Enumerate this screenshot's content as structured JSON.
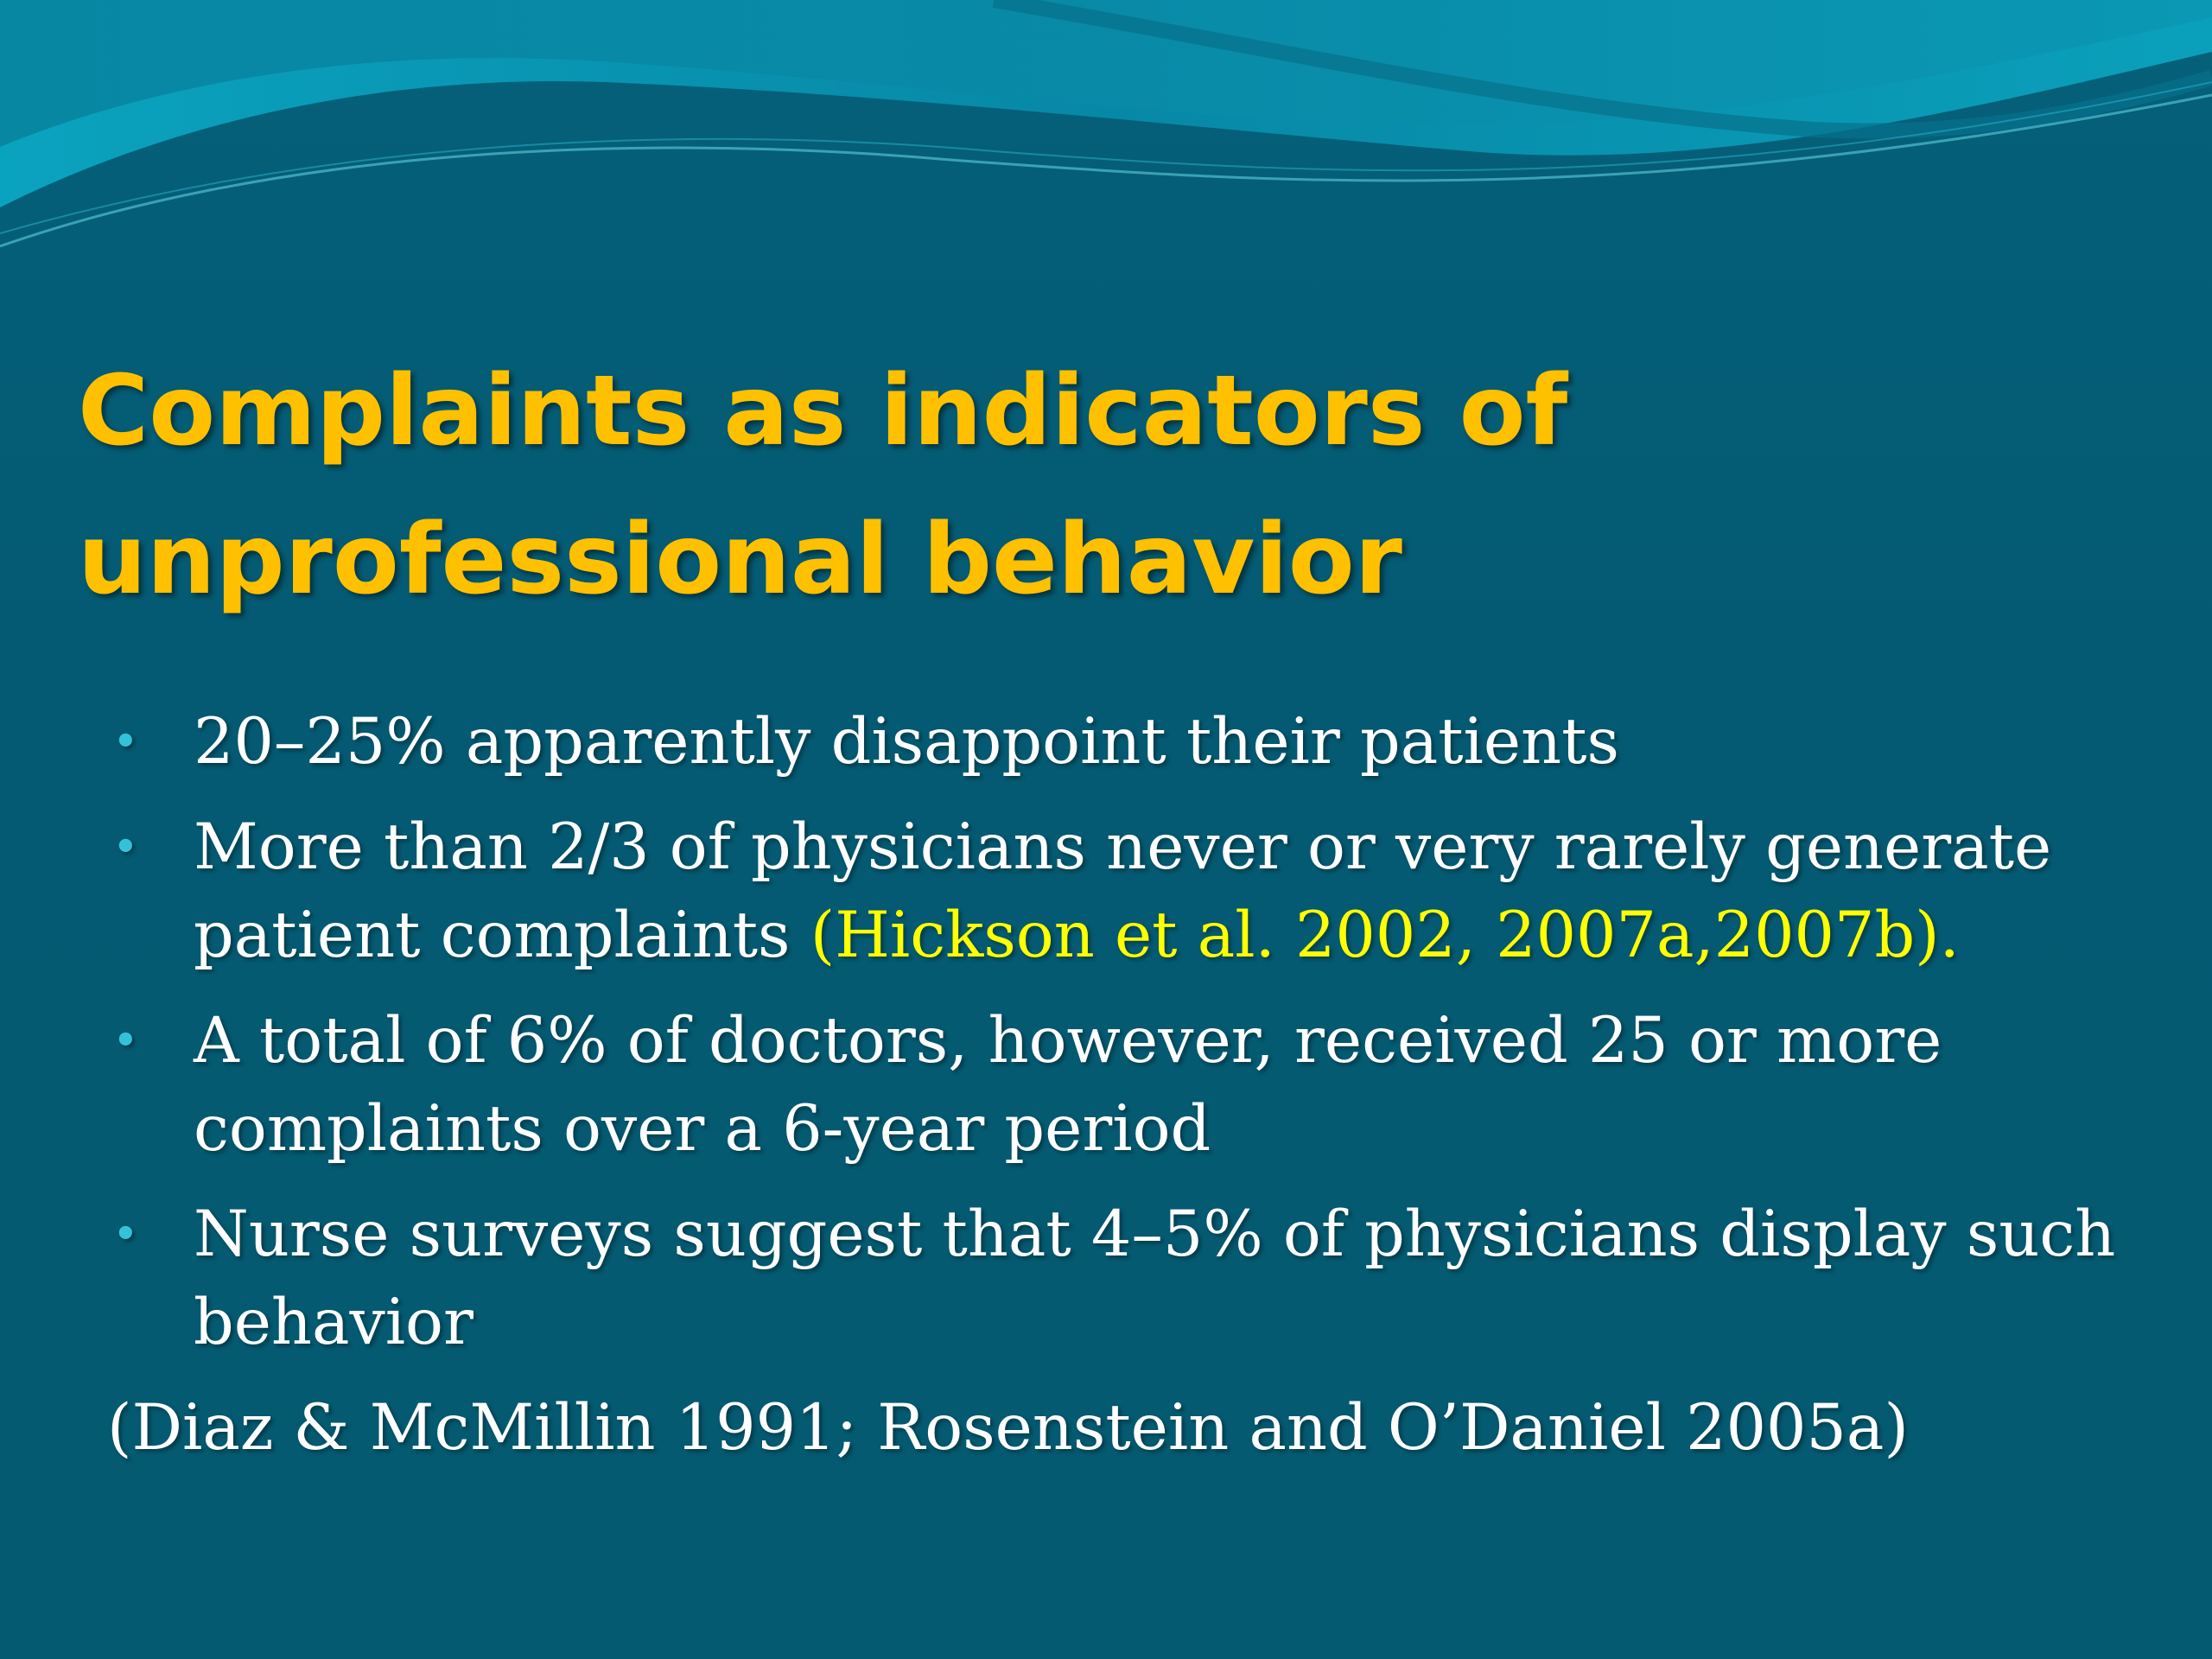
{
  "slide": {
    "title_lines": [
      "Complaints as indicators of",
      "unprofessional behavior"
    ],
    "bullets": [
      {
        "lines": [
          "20–25% apparently disappoint their patients"
        ]
      },
      {
        "line1": "More than 2/3 of physicians never or very rarely generate",
        "line2_text": "patient complaints ",
        "line2_cite": "(Hickson et al. 2002, 2007a,2007b)."
      },
      {
        "lines": [
          "A total of 6% of doctors, however, received 25 or more",
          "complaints over a 6-year period"
        ]
      },
      {
        "lines": [
          "Nurse surveys suggest that 4–5% of physicians display such",
          "behavior"
        ]
      }
    ],
    "bullet_glyph": "•",
    "source": "(Diaz & McMillin 1991; Rosenstein and O’Daniel 2005a)"
  },
  "colors": {
    "background": "#045a70",
    "title": "#ffc000",
    "body_text": "#ffffff",
    "citation": "#ffff00",
    "bullet": "#35c2d8"
  }
}
